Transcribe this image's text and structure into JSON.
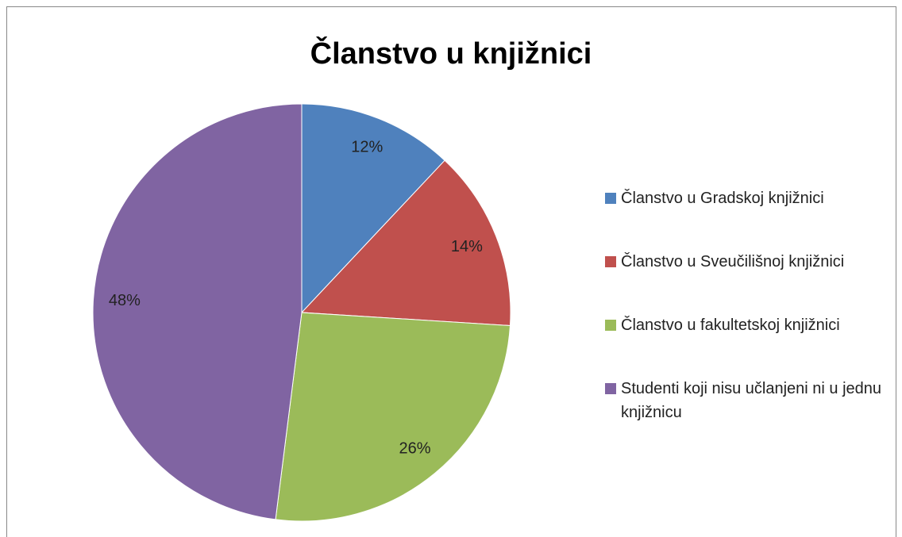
{
  "chart_data": {
    "type": "pie",
    "title": "Članstvo u knjižnici",
    "categories": [
      "Članstvo u Gradskoj knjižnici",
      "Članstvo u Sveučilišnoj knjižnici",
      "Članstvo u fakultetskoj knjižnici",
      "Studenti koji nisu učlanjeni ni u jednu knjižnicu"
    ],
    "values": [
      12,
      14,
      26,
      48
    ],
    "value_labels": [
      "12%",
      "14%",
      "26%",
      "48%"
    ],
    "colors": [
      "#4f81bd",
      "#c0504d",
      "#9bbb59",
      "#8064a2"
    ],
    "legend": "right"
  }
}
